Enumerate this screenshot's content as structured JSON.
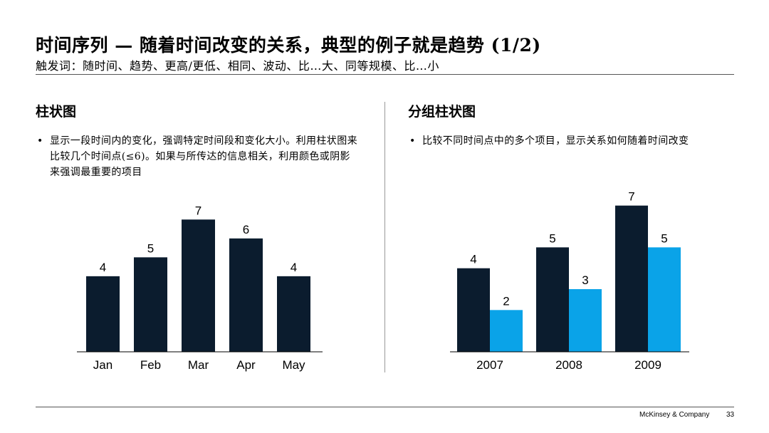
{
  "header": {
    "title": "时间序列 — 随着时间改变的关系，典型的例子就是趋势 (1/2)",
    "subtitle": "触发词：随时间、趋势、更高/更低、相同、波动、比…大、同等规模、比…小"
  },
  "left": {
    "section_title": "柱状图",
    "bullet": "显示一段时间内的变化，强调特定时间段和变化大小。利用柱状图来比较几个时间点(≤6)。如果与所传达的信息相关，利用颜色或阴影来强调最重要的项目"
  },
  "right": {
    "section_title": "分组柱状图",
    "bullet": "比较不同时间点中的多个项目，显示关系如何随着时间改变"
  },
  "footer": {
    "brand": "McKinsey & Company",
    "page": "33"
  },
  "colors": {
    "dark": "#0b1c2e",
    "accent": "#0aa3e8"
  },
  "chart_data": [
    {
      "type": "bar",
      "categories": [
        "Jan",
        "Feb",
        "Mar",
        "Apr",
        "May"
      ],
      "values": [
        4,
        5,
        7,
        6,
        4
      ],
      "ylim": [
        0,
        7.5
      ]
    },
    {
      "type": "bar",
      "categories": [
        "2007",
        "2008",
        "2009"
      ],
      "series": [
        {
          "values": [
            4,
            5,
            7
          ]
        },
        {
          "values": [
            2,
            3,
            5
          ]
        }
      ],
      "ylim": [
        0,
        7.5
      ]
    }
  ]
}
